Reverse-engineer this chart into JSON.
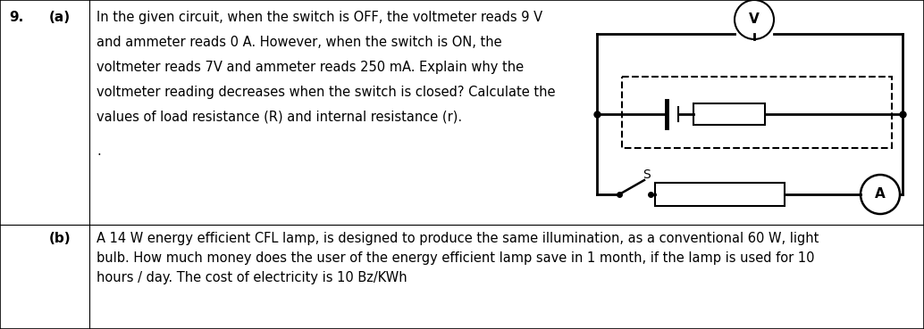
{
  "question_number": "9.",
  "part_a_label": "(a)",
  "part_b_label": "(b)",
  "part_a_text_lines": [
    "In the given circuit, when the switch is OFF, the voltmeter reads 9 V",
    "and ammeter reads 0 A. However, when the switch is ON, the",
    "voltmeter reads 7V and ammeter reads 250 mA. Explain why the",
    "voltmeter reading decreases when the switch is closed? Calculate the",
    "values of load resistance (R) and internal resistance (r)."
  ],
  "part_b_text_lines": [
    "A 14 W energy efficient CFL lamp, is designed to produce the same illumination, as a conventional 60 W, light",
    "bulb. How much money does the user of the energy efficient lamp save in 1 month, if the lamp is used for 10",
    "hours / day. The cost of electricity is 10 Bz/KWh"
  ],
  "dot_line": ".",
  "bg_color": "#ffffff",
  "border_color": "#000000",
  "text_color": "#000000",
  "font_size_main": 10.5,
  "font_size_label": 11.0,
  "circuit_voltmeter_label": "V",
  "circuit_ammeter_label": "A",
  "circuit_switch_label": "S"
}
